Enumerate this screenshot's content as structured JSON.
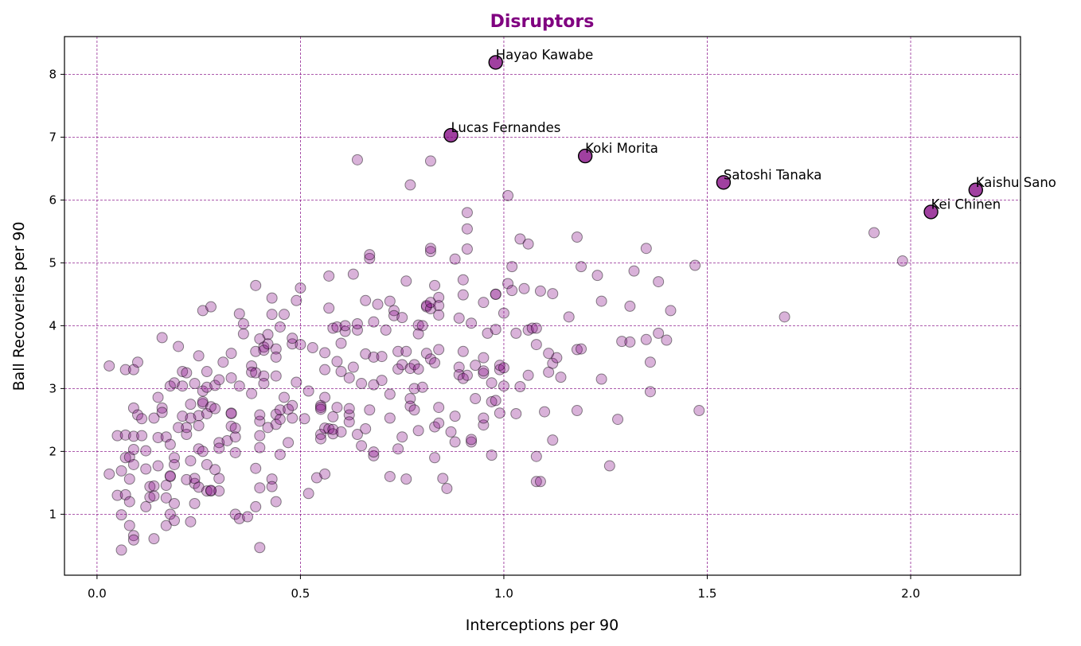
{
  "chart_data": {
    "type": "scatter",
    "title": "Disruptors",
    "xlabel": "Interceptions per 90",
    "ylabel": "Ball Recoveries per 90",
    "xlim": [
      -0.08,
      2.27
    ],
    "ylim": [
      0.03,
      8.6
    ],
    "xticks": [
      0.0,
      0.5,
      1.0,
      1.5,
      2.0
    ],
    "xtick_labels": [
      "0.0",
      "0.5",
      "1.0",
      "1.5",
      "2.0"
    ],
    "yticks": [
      1,
      2,
      3,
      4,
      5,
      6,
      7,
      8
    ],
    "ytick_labels": [
      "1",
      "2",
      "3",
      "4",
      "5",
      "6",
      "7",
      "8"
    ],
    "grid": true,
    "colors": {
      "accent": "#800080"
    },
    "highlighted": [
      {
        "name": "Hayao Kawabe",
        "x": 0.98,
        "y": 8.19
      },
      {
        "name": "Lucas Fernandes",
        "x": 0.87,
        "y": 7.03
      },
      {
        "name": "Koki Morita",
        "x": 1.2,
        "y": 6.7
      },
      {
        "name": "Satoshi Tanaka",
        "x": 1.54,
        "y": 6.28
      },
      {
        "name": "Kaishu Sano",
        "x": 2.16,
        "y": 6.16
      },
      {
        "name": "Kei Chinen",
        "x": 2.05,
        "y": 5.81
      }
    ],
    "points": [
      [
        0.03,
        3.36
      ],
      [
        0.03,
        1.64
      ],
      [
        0.05,
        2.25
      ],
      [
        0.05,
        1.3
      ],
      [
        0.06,
        0.99
      ],
      [
        0.06,
        1.69
      ],
      [
        0.06,
        0.43
      ],
      [
        0.07,
        1.9
      ],
      [
        0.07,
        3.3
      ],
      [
        0.07,
        1.31
      ],
      [
        0.07,
        2.26
      ],
      [
        0.08,
        1.2
      ],
      [
        0.08,
        0.82
      ],
      [
        0.08,
        1.56
      ],
      [
        0.08,
        1.91
      ],
      [
        0.09,
        2.24
      ],
      [
        0.09,
        3.3
      ],
      [
        0.09,
        2.69
      ],
      [
        0.09,
        2.03
      ],
      [
        0.09,
        1.79
      ],
      [
        0.09,
        0.66
      ],
      [
        0.09,
        0.59
      ],
      [
        0.1,
        2.58
      ],
      [
        0.1,
        3.42
      ],
      [
        0.11,
        2.25
      ],
      [
        0.11,
        2.52
      ],
      [
        0.12,
        1.12
      ],
      [
        0.12,
        1.72
      ],
      [
        0.12,
        2.01
      ],
      [
        0.13,
        1.44
      ],
      [
        0.13,
        1.27
      ],
      [
        0.14,
        1.45
      ],
      [
        0.14,
        0.61
      ],
      [
        0.14,
        1.29
      ],
      [
        0.14,
        2.53
      ],
      [
        0.15,
        2.86
      ],
      [
        0.15,
        2.22
      ],
      [
        0.15,
        1.77
      ],
      [
        0.16,
        2.69
      ],
      [
        0.16,
        2.62
      ],
      [
        0.16,
        3.81
      ],
      [
        0.17,
        1.46
      ],
      [
        0.17,
        1.26
      ],
      [
        0.17,
        0.82
      ],
      [
        0.17,
        2.23
      ],
      [
        0.18,
        1.6
      ],
      [
        0.18,
        3.04
      ],
      [
        0.18,
        2.11
      ],
      [
        0.18,
        1.0
      ],
      [
        0.18,
        1.61
      ],
      [
        0.19,
        1.9
      ],
      [
        0.19,
        0.9
      ],
      [
        0.19,
        1.17
      ],
      [
        0.19,
        1.79
      ],
      [
        0.19,
        3.09
      ],
      [
        0.2,
        3.67
      ],
      [
        0.2,
        2.38
      ],
      [
        0.21,
        2.56
      ],
      [
        0.21,
        3.27
      ],
      [
        0.21,
        3.04
      ],
      [
        0.22,
        2.27
      ],
      [
        0.22,
        1.55
      ],
      [
        0.22,
        3.25
      ],
      [
        0.22,
        2.38
      ],
      [
        0.23,
        0.88
      ],
      [
        0.23,
        2.75
      ],
      [
        0.23,
        2.53
      ],
      [
        0.23,
        1.85
      ],
      [
        0.24,
        1.49
      ],
      [
        0.24,
        3.08
      ],
      [
        0.24,
        1.17
      ],
      [
        0.24,
        1.57
      ],
      [
        0.25,
        2.41
      ],
      [
        0.25,
        2.04
      ],
      [
        0.25,
        3.52
      ],
      [
        0.25,
        2.57
      ],
      [
        0.25,
        1.43
      ],
      [
        0.26,
        4.24
      ],
      [
        0.26,
        2.96
      ],
      [
        0.26,
        2.0
      ],
      [
        0.26,
        2.76
      ],
      [
        0.26,
        2.79
      ],
      [
        0.27,
        1.79
      ],
      [
        0.27,
        2.6
      ],
      [
        0.27,
        3.27
      ],
      [
        0.27,
        1.37
      ],
      [
        0.27,
        3.02
      ],
      [
        0.28,
        2.71
      ],
      [
        0.28,
        4.3
      ],
      [
        0.28,
        1.37
      ],
      [
        0.28,
        1.38
      ],
      [
        0.29,
        3.05
      ],
      [
        0.29,
        2.68
      ],
      [
        0.29,
        1.71
      ],
      [
        0.3,
        1.57
      ],
      [
        0.3,
        2.14
      ],
      [
        0.3,
        1.37
      ],
      [
        0.3,
        2.05
      ],
      [
        0.3,
        3.14
      ],
      [
        0.31,
        3.42
      ],
      [
        0.32,
        2.17
      ],
      [
        0.33,
        2.4
      ],
      [
        0.33,
        2.6
      ],
      [
        0.33,
        2.61
      ],
      [
        0.33,
        3.56
      ],
      [
        0.33,
        3.17
      ],
      [
        0.34,
        1.98
      ],
      [
        0.34,
        2.37
      ],
      [
        0.34,
        2.23
      ],
      [
        0.34,
        1.0
      ],
      [
        0.35,
        0.93
      ],
      [
        0.35,
        3.04
      ],
      [
        0.35,
        4.19
      ],
      [
        0.36,
        3.87
      ],
      [
        0.36,
        4.03
      ],
      [
        0.37,
        0.96
      ],
      [
        0.38,
        3.36
      ],
      [
        0.38,
        2.92
      ],
      [
        0.38,
        3.26
      ],
      [
        0.39,
        1.12
      ],
      [
        0.39,
        3.25
      ],
      [
        0.39,
        3.59
      ],
      [
        0.39,
        4.64
      ],
      [
        0.39,
        1.73
      ],
      [
        0.4,
        3.79
      ],
      [
        0.4,
        2.48
      ],
      [
        0.4,
        2.58
      ],
      [
        0.4,
        2.25
      ],
      [
        0.4,
        2.06
      ],
      [
        0.4,
        0.47
      ],
      [
        0.4,
        1.42
      ],
      [
        0.41,
        3.2
      ],
      [
        0.41,
        3.08
      ],
      [
        0.41,
        3.66
      ],
      [
        0.41,
        3.61
      ],
      [
        0.42,
        3.86
      ],
      [
        0.42,
        2.38
      ],
      [
        0.42,
        3.71
      ],
      [
        0.43,
        4.18
      ],
      [
        0.43,
        1.56
      ],
      [
        0.43,
        1.44
      ],
      [
        0.43,
        4.44
      ],
      [
        0.44,
        3.63
      ],
      [
        0.44,
        1.2
      ],
      [
        0.44,
        2.43
      ],
      [
        0.44,
        2.59
      ],
      [
        0.44,
        3.5
      ],
      [
        0.44,
        3.2
      ],
      [
        0.45,
        3.98
      ],
      [
        0.45,
        1.95
      ],
      [
        0.45,
        2.51
      ],
      [
        0.45,
        2.66
      ],
      [
        0.46,
        4.18
      ],
      [
        0.46,
        2.86
      ],
      [
        0.47,
        2.14
      ],
      [
        0.47,
        2.67
      ],
      [
        0.48,
        3.71
      ],
      [
        0.48,
        2.53
      ],
      [
        0.48,
        3.8
      ],
      [
        0.48,
        2.73
      ],
      [
        0.49,
        4.4
      ],
      [
        0.49,
        3.1
      ],
      [
        0.5,
        4.6
      ],
      [
        0.5,
        3.7
      ],
      [
        0.51,
        2.52
      ],
      [
        0.52,
        1.33
      ],
      [
        0.52,
        2.96
      ],
      [
        0.53,
        3.65
      ],
      [
        0.54,
        1.58
      ],
      [
        0.55,
        2.73
      ],
      [
        0.55,
        2.67
      ],
      [
        0.55,
        2.27
      ],
      [
        0.55,
        2.7
      ],
      [
        0.55,
        2.2
      ],
      [
        0.56,
        1.64
      ],
      [
        0.56,
        3.57
      ],
      [
        0.56,
        3.3
      ],
      [
        0.56,
        2.37
      ],
      [
        0.56,
        2.86
      ],
      [
        0.57,
        4.28
      ],
      [
        0.57,
        4.79
      ],
      [
        0.57,
        2.36
      ],
      [
        0.58,
        2.28
      ],
      [
        0.58,
        2.55
      ],
      [
        0.58,
        3.96
      ],
      [
        0.58,
        2.35
      ],
      [
        0.59,
        2.7
      ],
      [
        0.59,
        3.98
      ],
      [
        0.59,
        3.43
      ],
      [
        0.6,
        3.27
      ],
      [
        0.6,
        3.72
      ],
      [
        0.6,
        2.31
      ],
      [
        0.61,
        3.91
      ],
      [
        0.61,
        4.0
      ],
      [
        0.62,
        2.58
      ],
      [
        0.62,
        2.68
      ],
      [
        0.62,
        2.47
      ],
      [
        0.62,
        3.17
      ],
      [
        0.63,
        4.82
      ],
      [
        0.63,
        3.34
      ],
      [
        0.64,
        2.27
      ],
      [
        0.64,
        6.64
      ],
      [
        0.64,
        3.93
      ],
      [
        0.64,
        4.03
      ],
      [
        0.65,
        2.09
      ],
      [
        0.65,
        3.08
      ],
      [
        0.66,
        3.55
      ],
      [
        0.66,
        4.4
      ],
      [
        0.66,
        2.36
      ],
      [
        0.67,
        5.07
      ],
      [
        0.67,
        2.66
      ],
      [
        0.67,
        5.13
      ],
      [
        0.68,
        1.93
      ],
      [
        0.68,
        1.99
      ],
      [
        0.68,
        3.06
      ],
      [
        0.68,
        4.06
      ],
      [
        0.68,
        3.5
      ],
      [
        0.69,
        4.34
      ],
      [
        0.7,
        3.13
      ],
      [
        0.7,
        3.51
      ],
      [
        0.71,
        3.93
      ],
      [
        0.72,
        2.91
      ],
      [
        0.72,
        4.39
      ],
      [
        0.72,
        1.6
      ],
      [
        0.72,
        2.53
      ],
      [
        0.73,
        4.24
      ],
      [
        0.73,
        4.16
      ],
      [
        0.74,
        3.59
      ],
      [
        0.74,
        3.31
      ],
      [
        0.74,
        2.04
      ],
      [
        0.75,
        3.38
      ],
      [
        0.75,
        2.23
      ],
      [
        0.75,
        4.13
      ],
      [
        0.76,
        3.59
      ],
      [
        0.76,
        4.71
      ],
      [
        0.76,
        1.56
      ],
      [
        0.77,
        2.84
      ],
      [
        0.77,
        3.32
      ],
      [
        0.77,
        2.72
      ],
      [
        0.77,
        6.24
      ],
      [
        0.78,
        3.38
      ],
      [
        0.78,
        2.66
      ],
      [
        0.78,
        3.0
      ],
      [
        0.79,
        4.01
      ],
      [
        0.79,
        3.87
      ],
      [
        0.79,
        2.33
      ],
      [
        0.79,
        3.31
      ],
      [
        0.8,
        3.02
      ],
      [
        0.8,
        4.0
      ],
      [
        0.81,
        3.56
      ],
      [
        0.81,
        4.3
      ],
      [
        0.81,
        4.32
      ],
      [
        0.82,
        3.47
      ],
      [
        0.82,
        6.62
      ],
      [
        0.82,
        5.18
      ],
      [
        0.82,
        5.23
      ],
      [
        0.82,
        4.27
      ],
      [
        0.82,
        4.37
      ],
      [
        0.83,
        1.9
      ],
      [
        0.83,
        3.41
      ],
      [
        0.83,
        2.39
      ],
      [
        0.83,
        4.64
      ],
      [
        0.84,
        2.45
      ],
      [
        0.84,
        4.45
      ],
      [
        0.84,
        3.62
      ],
      [
        0.84,
        4.32
      ],
      [
        0.84,
        4.17
      ],
      [
        0.84,
        2.7
      ],
      [
        0.85,
        1.57
      ],
      [
        0.86,
        1.41
      ],
      [
        0.87,
        2.31
      ],
      [
        0.88,
        2.15
      ],
      [
        0.88,
        2.56
      ],
      [
        0.88,
        5.06
      ],
      [
        0.89,
        3.34
      ],
      [
        0.89,
        4.12
      ],
      [
        0.89,
        3.22
      ],
      [
        0.9,
        3.16
      ],
      [
        0.9,
        4.73
      ],
      [
        0.9,
        4.49
      ],
      [
        0.9,
        3.59
      ],
      [
        0.91,
        5.54
      ],
      [
        0.91,
        5.22
      ],
      [
        0.91,
        5.8
      ],
      [
        0.91,
        3.21
      ],
      [
        0.92,
        2.15
      ],
      [
        0.92,
        2.19
      ],
      [
        0.92,
        4.04
      ],
      [
        0.93,
        2.84
      ],
      [
        0.93,
        3.37
      ],
      [
        0.95,
        3.24
      ],
      [
        0.95,
        2.42
      ],
      [
        0.95,
        3.28
      ],
      [
        0.95,
        4.37
      ],
      [
        0.95,
        3.49
      ],
      [
        0.95,
        2.53
      ],
      [
        0.96,
        3.88
      ],
      [
        0.97,
        1.94
      ],
      [
        0.97,
        3.09
      ],
      [
        0.97,
        2.79
      ],
      [
        0.98,
        2.81
      ],
      [
        0.98,
        3.94
      ],
      [
        0.98,
        4.5
      ],
      [
        0.98,
        4.5
      ],
      [
        0.99,
        3.3
      ],
      [
        0.99,
        3.37
      ],
      [
        0.99,
        2.61
      ],
      [
        1.0,
        3.04
      ],
      [
        1.0,
        4.2
      ],
      [
        1.0,
        3.33
      ],
      [
        1.01,
        4.67
      ],
      [
        1.01,
        6.07
      ],
      [
        1.02,
        4.94
      ],
      [
        1.02,
        4.56
      ],
      [
        1.03,
        2.6
      ],
      [
        1.03,
        3.88
      ],
      [
        1.04,
        3.03
      ],
      [
        1.04,
        5.38
      ],
      [
        1.05,
        4.59
      ],
      [
        1.06,
        3.93
      ],
      [
        1.06,
        5.3
      ],
      [
        1.06,
        3.21
      ],
      [
        1.07,
        3.96
      ],
      [
        1.08,
        1.92
      ],
      [
        1.08,
        3.96
      ],
      [
        1.08,
        1.52
      ],
      [
        1.08,
        3.7
      ],
      [
        1.09,
        1.52
      ],
      [
        1.09,
        4.55
      ],
      [
        1.1,
        2.63
      ],
      [
        1.11,
        3.26
      ],
      [
        1.11,
        3.56
      ],
      [
        1.12,
        4.51
      ],
      [
        1.12,
        3.4
      ],
      [
        1.12,
        2.18
      ],
      [
        1.13,
        3.49
      ],
      [
        1.14,
        3.18
      ],
      [
        1.16,
        4.14
      ],
      [
        1.18,
        3.62
      ],
      [
        1.18,
        2.65
      ],
      [
        1.18,
        5.41
      ],
      [
        1.19,
        4.94
      ],
      [
        1.19,
        3.63
      ],
      [
        1.23,
        4.8
      ],
      [
        1.24,
        3.15
      ],
      [
        1.24,
        4.39
      ],
      [
        1.26,
        1.77
      ],
      [
        1.28,
        2.51
      ],
      [
        1.29,
        3.75
      ],
      [
        1.31,
        4.31
      ],
      [
        1.31,
        3.74
      ],
      [
        1.32,
        4.87
      ],
      [
        1.35,
        3.78
      ],
      [
        1.35,
        5.23
      ],
      [
        1.36,
        3.42
      ],
      [
        1.36,
        2.95
      ],
      [
        1.38,
        4.7
      ],
      [
        1.38,
        3.88
      ],
      [
        1.4,
        3.77
      ],
      [
        1.41,
        4.24
      ],
      [
        1.47,
        4.96
      ],
      [
        1.48,
        2.65
      ],
      [
        1.69,
        4.14
      ],
      [
        1.91,
        5.48
      ],
      [
        1.98,
        5.03
      ]
    ]
  }
}
